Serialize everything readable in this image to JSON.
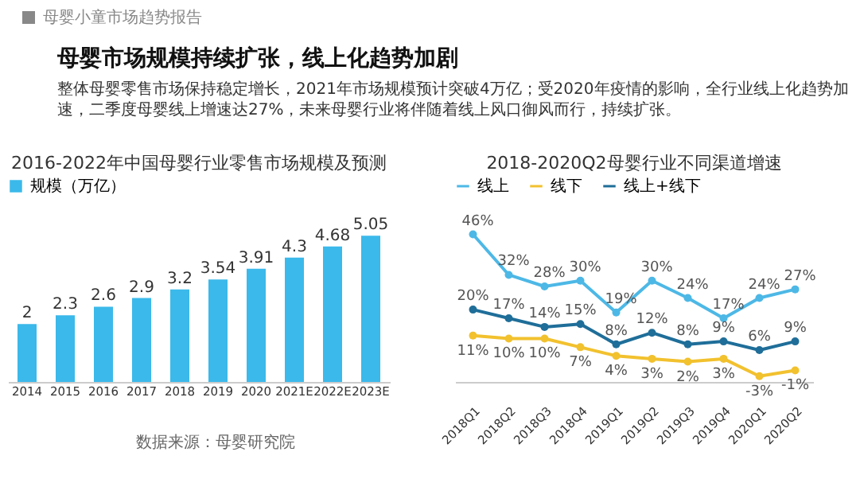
{
  "chart_data": [
    {
      "type": "other",
      "title": "母婴市场规模持续扩张，线上化趋势加剧",
      "annotations": [
        "母婴小童市场趋势报告",
        "整体母婴零售市场保持稳定增长，2021年市场规模预计突破4万亿；受2020年疫情的影响，全行业线上化趋势加速，二季度母婴线上增速达27%，未来母婴行业将伴随着线上风口御风而行，持续扩张。"
      ]
    },
    {
      "type": "bar",
      "title": "2016-2022年中国母婴行业零售市场规模及预测",
      "categories": [
        "2014",
        "2015",
        "2016",
        "2017",
        "2018",
        "2019",
        "2020",
        "2021E",
        "2022E",
        "2023E"
      ],
      "series": [
        {
          "name": "规模（万亿）",
          "color": "#3bb9ea",
          "values": [
            2,
            2.3,
            2.6,
            2.9,
            3.2,
            3.54,
            3.91,
            4.3,
            4.68,
            5.05
          ]
        }
      ],
      "data_labels": true,
      "legend": "top",
      "annotations": [
        "数据来源：母婴研究院"
      ]
    },
    {
      "type": "line",
      "title": "2018-2020Q2母婴行业不同渠道增速",
      "categories": [
        "2018Q1",
        "2018Q2",
        "2018Q3",
        "2018Q4",
        "2019Q1",
        "2019Q2",
        "2019Q3",
        "2019Q4",
        "2020Q1",
        "2020Q2"
      ],
      "series": [
        {
          "name": "线上",
          "color": "#4db8e6",
          "values": [
            46,
            32,
            28,
            30,
            19,
            30,
            24,
            17,
            24,
            27
          ],
          "value_labels": [
            "46%",
            "32%",
            "28%",
            "30%",
            "19%",
            "30%",
            "24%",
            "17%",
            "24%",
            "27%"
          ]
        },
        {
          "name": "线下",
          "color": "#f2c12e",
          "values": [
            11,
            10,
            10,
            7,
            4,
            3,
            2,
            3,
            -3,
            -1
          ],
          "value_labels": [
            "11%",
            "10%",
            "10%",
            "7%",
            "4%",
            "3%",
            "2%",
            "3%",
            "-3%",
            "-1%"
          ]
        },
        {
          "name": "线上+线下",
          "color": "#1f6e99",
          "values": [
            20,
            17,
            14,
            15,
            8,
            12,
            8,
            9,
            6,
            9
          ],
          "value_labels": [
            "20%",
            "17%",
            "14%",
            "15%",
            "8%",
            "12%",
            "8%",
            "9%",
            "6%",
            "9%"
          ]
        }
      ],
      "marker": "circle",
      "legend": "top"
    }
  ]
}
